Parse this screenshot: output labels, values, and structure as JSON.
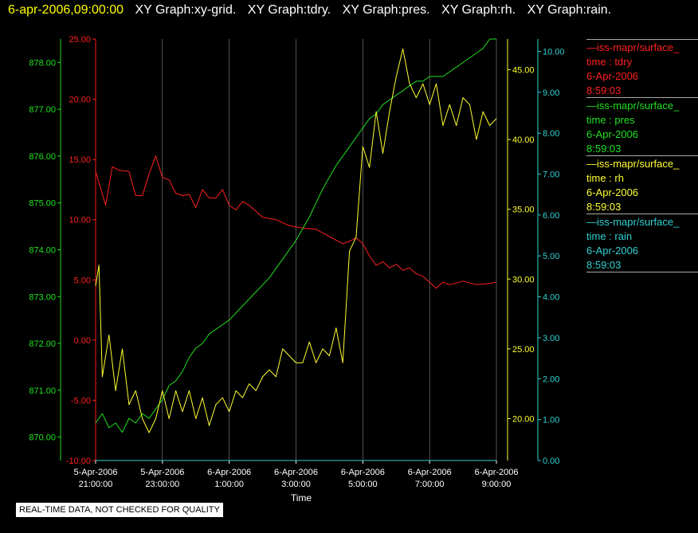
{
  "header": {
    "timestamp": "6-apr-2006,09:00:00",
    "graph_labels": [
      "XY Graph:xy-grid.",
      "XY Graph:tdry.",
      "XY Graph:pres.",
      "XY Graph:rh.",
      "XY Graph:rain."
    ]
  },
  "colors": {
    "background": "#000000",
    "timestamp": "#ffff00",
    "graph_label": "#ffffff",
    "tdry": "#ff2020",
    "pres": "#20e020",
    "rh": "#ffff30",
    "rain": "#30d0d0",
    "grid": "#ffffff"
  },
  "legend": [
    {
      "source": "—iss-mapr/surface_",
      "var": "time : tdry",
      "date": "6-Apr-2006",
      "time": "8:59:03",
      "color_key": "tdry"
    },
    {
      "source": "—iss-mapr/surface_",
      "var": "time : pres",
      "date": "6-Apr-2006",
      "time": "8:59:03",
      "color_key": "pres"
    },
    {
      "source": "—iss-mapr/surface_",
      "var": "time : rh",
      "date": "6-Apr-2006",
      "time": "8:59:03",
      "color_key": "rh"
    },
    {
      "source": "—iss-mapr/surface_",
      "var": "time : rain",
      "date": "6-Apr-2006",
      "time": "8:59:03",
      "color_key": "rain"
    }
  ],
  "footer": {
    "note": "REAL-TIME DATA, NOT CHECKED FOR QUALITY"
  },
  "chart_data": {
    "type": "line",
    "xlabel": "Time",
    "xlim_hours": [
      -12,
      0
    ],
    "x_ticks": [
      {
        "h": -12,
        "line1": "5-Apr-2006",
        "line2": "21:00:00"
      },
      {
        "h": -10,
        "line1": "5-Apr-2006",
        "line2": "23:00:00"
      },
      {
        "h": -8,
        "line1": "6-Apr-2006",
        "line2": "1:00:00"
      },
      {
        "h": -6,
        "line1": "6-Apr-2006",
        "line2": "3:00:00"
      },
      {
        "h": -4,
        "line1": "6-Apr-2006",
        "line2": "5:00:00"
      },
      {
        "h": -2,
        "line1": "6-Apr-2006",
        "line2": "7:00:00"
      },
      {
        "h": 0,
        "line1": "6-Apr-2006",
        "line2": "9:00:00"
      }
    ],
    "grid": true,
    "axes": {
      "tdry": {
        "range": [
          -10,
          25
        ],
        "ticks": [
          "-10.00",
          "-5.00",
          "0.00",
          "5.00",
          "10.00",
          "15.00",
          "20.00",
          "25.00"
        ]
      },
      "pres": {
        "range": [
          869.5,
          878.5
        ],
        "ticks": [
          "870.00",
          "871.00",
          "872.00",
          "873.00",
          "874.00",
          "875.00",
          "876.00",
          "877.00",
          "878.00"
        ]
      },
      "rh": {
        "range": [
          17,
          47.2
        ],
        "ticks": [
          "20.00",
          "25.00",
          "30.00",
          "35.00",
          "40.00",
          "45.00"
        ]
      },
      "rain": {
        "range": [
          0,
          10.3
        ],
        "ticks": [
          "0.00",
          "1.00",
          "2.00",
          "3.00",
          "4.00",
          "5.00",
          "6.00",
          "7.00",
          "8.00",
          "9.00",
          "10.00"
        ]
      }
    },
    "series": [
      {
        "key": "tdry",
        "x": [
          -12,
          -11.7,
          -11.5,
          -11.3,
          -11,
          -10.8,
          -10.6,
          -10.4,
          -10.2,
          -10,
          -9.8,
          -9.6,
          -9.4,
          -9.2,
          -9,
          -8.8,
          -8.6,
          -8.4,
          -8.2,
          -8,
          -7.8,
          -7.6,
          -7.4,
          -7,
          -6.6,
          -6.2,
          -5.8,
          -5.4,
          -5,
          -4.8,
          -4.6,
          -4.4,
          -4.2,
          -4,
          -3.8,
          -3.6,
          -3.4,
          -3.2,
          -3,
          -2.8,
          -2.6,
          -2.4,
          -2.2,
          -2,
          -1.8,
          -1.6,
          -1.4,
          -1,
          -0.6,
          -0.2,
          0
        ],
        "y": [
          14,
          11.2,
          14.4,
          14.1,
          14,
          12,
          12,
          13.8,
          15.3,
          13.5,
          13.3,
          12.2,
          12,
          12.1,
          11,
          12.5,
          11.8,
          11.8,
          12.5,
          11.2,
          10.8,
          11.5,
          11.2,
          10.2,
          10,
          9.5,
          9.3,
          9.2,
          8.6,
          8.3,
          8,
          8.2,
          8.5,
          8,
          7,
          6.2,
          6.5,
          6,
          6.3,
          5.8,
          6,
          5.5,
          5.3,
          4.8,
          4.3,
          4.8,
          4.6,
          4.9,
          4.6,
          4.7,
          4.8
        ]
      },
      {
        "key": "pres",
        "x": [
          -12,
          -11.8,
          -11.6,
          -11.4,
          -11.2,
          -11,
          -10.8,
          -10.6,
          -10.4,
          -10.2,
          -10,
          -9.8,
          -9.6,
          -9.4,
          -9.2,
          -9,
          -8.8,
          -8.6,
          -8.4,
          -8.2,
          -8,
          -7.6,
          -7.2,
          -6.8,
          -6.4,
          -6,
          -5.6,
          -5.2,
          -4.8,
          -4.6,
          -4.4,
          -4.2,
          -4,
          -3.8,
          -3.6,
          -3.4,
          -3.2,
          -3,
          -2.8,
          -2.6,
          -2.4,
          -2.2,
          -2,
          -1.8,
          -1.6,
          -1.4,
          -1.2,
          -1,
          -0.8,
          -0.6,
          -0.4,
          -0.2,
          0
        ],
        "y": [
          870.3,
          870.5,
          870.2,
          870.3,
          870.1,
          870.4,
          870.3,
          870.5,
          870.4,
          870.6,
          870.8,
          871.1,
          871.2,
          871.4,
          871.7,
          871.9,
          872,
          872.2,
          872.3,
          872.4,
          872.5,
          872.8,
          873.1,
          873.4,
          873.8,
          874.2,
          874.7,
          875.3,
          875.8,
          876,
          876.2,
          876.4,
          876.6,
          876.8,
          876.9,
          877.1,
          877.2,
          877.3,
          877.4,
          877.5,
          877.6,
          877.6,
          877.7,
          877.7,
          877.7,
          877.8,
          877.9,
          878,
          878.1,
          878.2,
          878.3,
          878.5,
          878.5
        ]
      },
      {
        "key": "rh",
        "x": [
          -12,
          -11.9,
          -11.8,
          -11.6,
          -11.4,
          -11.2,
          -11,
          -10.8,
          -10.6,
          -10.4,
          -10.2,
          -10,
          -9.8,
          -9.6,
          -9.4,
          -9.2,
          -9,
          -8.8,
          -8.6,
          -8.4,
          -8.2,
          -8,
          -7.8,
          -7.6,
          -7.4,
          -7.2,
          -7,
          -6.8,
          -6.6,
          -6.4,
          -6.2,
          -6,
          -5.8,
          -5.6,
          -5.4,
          -5.2,
          -5,
          -4.8,
          -4.6,
          -4.4,
          -4.2,
          -4,
          -3.8,
          -3.6,
          -3.4,
          -3.2,
          -3,
          -2.8,
          -2.6,
          -2.4,
          -2.2,
          -2,
          -1.8,
          -1.6,
          -1.4,
          -1.2,
          -1,
          -0.8,
          -0.6,
          -0.4,
          -0.2,
          0
        ],
        "y": [
          29.5,
          31,
          23,
          26,
          22,
          25,
          21,
          22,
          20,
          19,
          20,
          22,
          20,
          22,
          20.5,
          22,
          20,
          21.5,
          19.5,
          21,
          21.5,
          20.5,
          22,
          21.5,
          22.5,
          22,
          23,
          23.5,
          23,
          25,
          24.5,
          24,
          24,
          25.5,
          24,
          25,
          24.5,
          26.5,
          24,
          32,
          33,
          39.5,
          38,
          42,
          39,
          42,
          44.5,
          46.5,
          44,
          43,
          44,
          42.5,
          44,
          41,
          42.5,
          41,
          43,
          42.5,
          40,
          42,
          41,
          41.5
        ]
      },
      {
        "key": "rain",
        "x": [
          -12,
          0
        ],
        "y": [
          0,
          0
        ]
      }
    ]
  }
}
